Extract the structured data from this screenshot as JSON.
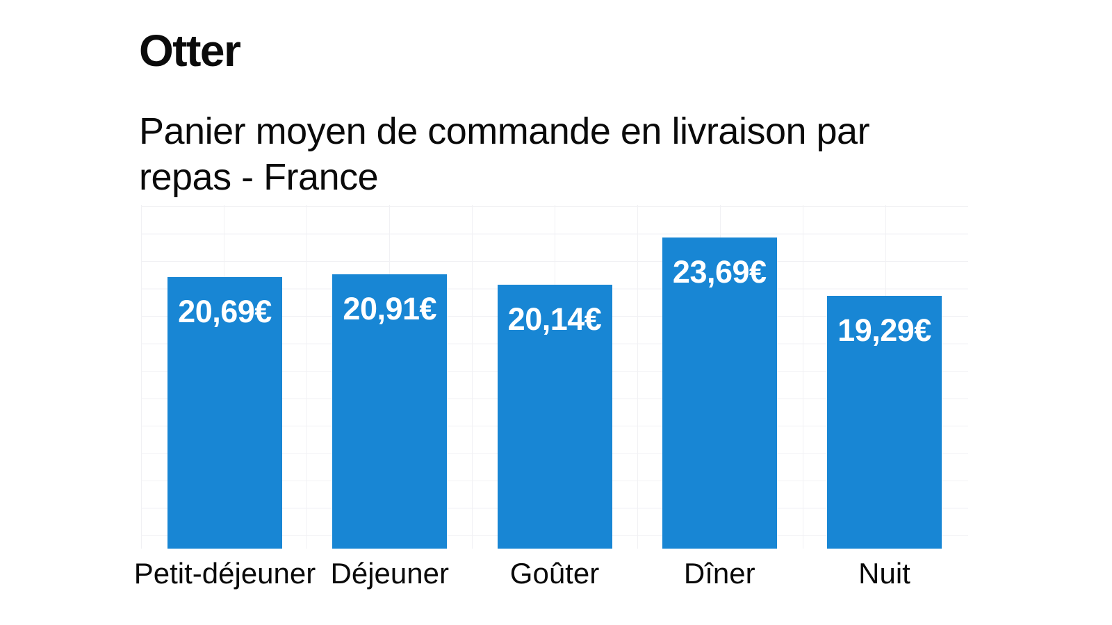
{
  "brand": {
    "logo_text": "Otter"
  },
  "header": {
    "title": "Panier moyen de commande en livraison par repas - France"
  },
  "chart_data": {
    "type": "bar",
    "title": "Panier moyen de commande en livraison par repas - France",
    "categories": [
      "Petit-déjeuner",
      "Déjeuner",
      "Goûter",
      "Dîner",
      "Nuit"
    ],
    "values": [
      20.69,
      20.91,
      20.14,
      23.69,
      19.29
    ],
    "value_labels": [
      "20,69€",
      "20,91€",
      "20,14€",
      "23,69€",
      "19,29€"
    ],
    "currency": "EUR",
    "xlabel": "",
    "ylabel": "",
    "ylim": [
      0,
      26.2
    ],
    "grid": true,
    "legend": "none",
    "bar_color": "#1886d4",
    "value_label_color": "#ffffff",
    "grid_color": "#f1f1f4"
  }
}
